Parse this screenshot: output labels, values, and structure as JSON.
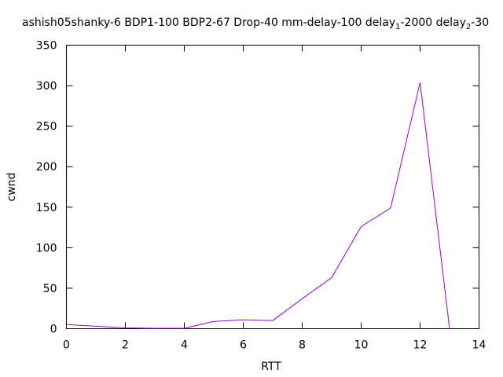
{
  "chart_data": {
    "type": "line",
    "title": "ashish05shanky-6 BDP1-100 BDP2-67 Drop-40 mm-delay-100 delay",
    "title_parts": {
      "sub1": "1",
      "mid": "-2000 delay",
      "sub2": "2",
      "tail": "-30"
    },
    "xlabel": "RTT",
    "ylabel": "cwnd",
    "xlim": [
      0,
      14
    ],
    "ylim": [
      0,
      350
    ],
    "xticks": [
      "0",
      "2",
      "4",
      "6",
      "8",
      "10",
      "12",
      "14"
    ],
    "yticks": [
      "0",
      "50",
      "100",
      "150",
      "200",
      "250",
      "300",
      "350"
    ],
    "grid": false,
    "series": [
      {
        "color": "#9400d3",
        "x": [
          0,
          1,
          2,
          3,
          4,
          5,
          6,
          7,
          8,
          9,
          10,
          11,
          12,
          13
        ],
        "y": [
          5,
          3,
          1,
          0.5,
          0.5,
          9,
          11,
          10,
          37,
          63,
          126,
          149,
          304,
          0
        ]
      }
    ]
  }
}
